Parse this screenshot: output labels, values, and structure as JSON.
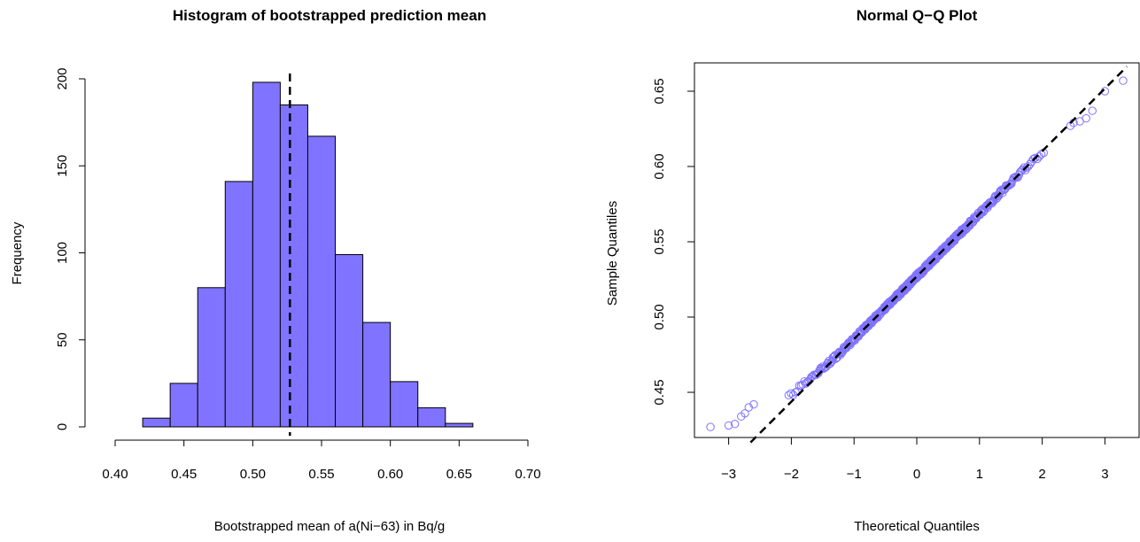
{
  "chart_data": [
    {
      "type": "bar",
      "subtype": "histogram",
      "title": "Histogram of bootstrapped prediction mean",
      "xlabel": "Bootstrapped mean of a(Ni−63) in Bq/g",
      "ylabel": "Frequency",
      "bins": [
        {
          "x0": 0.42,
          "x1": 0.44,
          "count": 5
        },
        {
          "x0": 0.44,
          "x1": 0.46,
          "count": 25
        },
        {
          "x0": 0.46,
          "x1": 0.48,
          "count": 80
        },
        {
          "x0": 0.48,
          "x1": 0.5,
          "count": 141
        },
        {
          "x0": 0.5,
          "x1": 0.52,
          "count": 198
        },
        {
          "x0": 0.52,
          "x1": 0.54,
          "count": 185
        },
        {
          "x0": 0.54,
          "x1": 0.56,
          "count": 167
        },
        {
          "x0": 0.56,
          "x1": 0.58,
          "count": 99
        },
        {
          "x0": 0.58,
          "x1": 0.6,
          "count": 60
        },
        {
          "x0": 0.6,
          "x1": 0.62,
          "count": 26
        },
        {
          "x0": 0.62,
          "x1": 0.64,
          "count": 11
        },
        {
          "x0": 0.64,
          "x1": 0.66,
          "count": 2
        }
      ],
      "mean_line": 0.527,
      "xlim": [
        0.4,
        0.7
      ],
      "ylim": [
        0,
        200
      ],
      "xticks": [
        "0.40",
        "0.45",
        "0.50",
        "0.55",
        "0.60",
        "0.65",
        "0.70"
      ],
      "yticks": [
        "0",
        "50",
        "100",
        "150",
        "200"
      ],
      "bar_color": "#8073FF",
      "line_color": "#000000"
    },
    {
      "type": "scatter",
      "subtype": "qq-plot",
      "title": "Normal Q−Q Plot",
      "xlabel": "Theoretical Quantiles",
      "ylabel": "Sample Quantiles",
      "points_summary": "Normal quantile points, approximately linear with slight deviation at the lower tail",
      "sample_low_tail": [
        {
          "x": -3.29,
          "y": 0.427
        },
        {
          "x": -3.0,
          "y": 0.428
        },
        {
          "x": -2.9,
          "y": 0.429
        },
        {
          "x": -2.8,
          "y": 0.434
        },
        {
          "x": -2.74,
          "y": 0.436
        },
        {
          "x": -2.68,
          "y": 0.44
        },
        {
          "x": -2.6,
          "y": 0.442
        }
      ],
      "sample_high_tail": [
        {
          "x": 2.45,
          "y": 0.627
        },
        {
          "x": 2.5,
          "y": 0.629
        },
        {
          "x": 2.6,
          "y": 0.63
        },
        {
          "x": 2.7,
          "y": 0.632
        },
        {
          "x": 2.8,
          "y": 0.637
        },
        {
          "x": 3.0,
          "y": 0.65
        },
        {
          "x": 3.29,
          "y": 0.657
        }
      ],
      "reference_line": {
        "slope": 0.0416,
        "intercept": 0.527
      },
      "xlim": [
        -3.35,
        3.35
      ],
      "ylim": [
        0.42,
        0.665
      ],
      "xticks": [
        "−3",
        "−2",
        "−1",
        "0",
        "1",
        "2",
        "3"
      ],
      "yticks": [
        "0.45",
        "0.50",
        "0.55",
        "0.60",
        "0.65"
      ],
      "point_color": "#8073FF",
      "line_color": "#000000"
    }
  ]
}
